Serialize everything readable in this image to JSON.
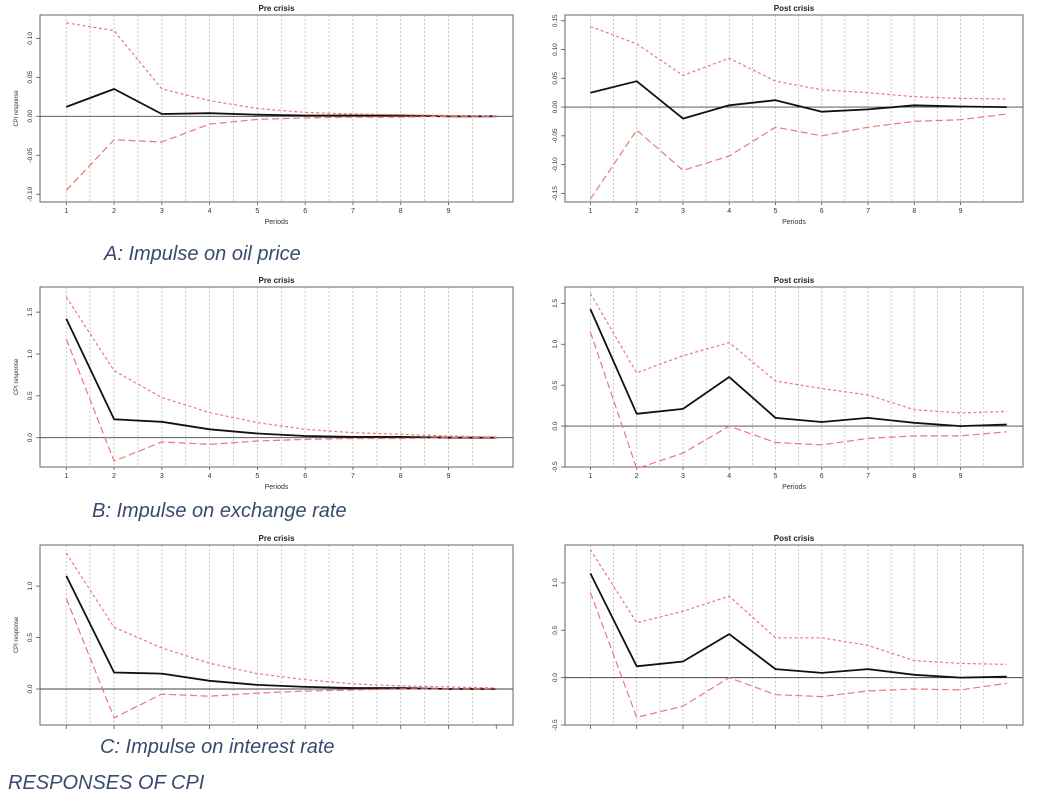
{
  "figure_title": "RESPONSES OF CPI",
  "captions": [
    "A: Impulse on oil price",
    "B: Impulse on exchange rate",
    "C: Impulse on interest rate"
  ],
  "colors": {
    "response": "#111111",
    "band": "#ee7777",
    "grid": "#bbbbbb",
    "frame": "#555555"
  },
  "chart_data": [
    {
      "type": "line",
      "title": "Pre crisis",
      "xlabel": "Periods",
      "ylabel": "CPI response",
      "ylim": [
        -0.11,
        0.13
      ],
      "yticks": [
        -0.1,
        -0.05,
        0.0,
        0.05,
        0.1
      ],
      "ytick_labels": [
        "-0.10",
        "-0.05",
        "0.00",
        "0.05",
        "0.10"
      ],
      "x_tick_labels": [
        "1",
        "2",
        "3",
        "4",
        "5",
        "6",
        "7",
        "8",
        "9"
      ],
      "x": [
        1,
        2,
        3,
        4,
        5,
        6,
        7,
        8,
        9,
        10
      ],
      "series": [
        {
          "values": [
            0.012,
            0.035,
            0.003,
            0.004,
            0.002,
            0.001,
            0.001,
            0.001,
            0.0,
            0.0
          ]
        },
        {
          "values": [
            0.12,
            0.11,
            0.035,
            0.02,
            0.01,
            0.005,
            0.003,
            0.002,
            0.001,
            0.0
          ]
        },
        {
          "values": [
            -0.095,
            -0.03,
            -0.033,
            -0.01,
            -0.004,
            -0.002,
            -0.001,
            -0.001,
            0.0,
            0.0
          ]
        }
      ]
    },
    {
      "type": "line",
      "title": "Post crisis",
      "xlabel": "Periods",
      "ylabel": "",
      "ylim": [
        -0.165,
        0.16
      ],
      "yticks": [
        -0.15,
        -0.1,
        -0.05,
        0.0,
        0.05,
        0.1,
        0.15
      ],
      "ytick_labels": [
        "-0.15",
        "-0.10",
        "-0.05",
        "0.00",
        "0.05",
        "0.10",
        "0.15"
      ],
      "x_tick_labels": [
        "1",
        "2",
        "3",
        "4",
        "5",
        "6",
        "7",
        "8",
        "9"
      ],
      "x": [
        1,
        2,
        3,
        4,
        5,
        6,
        7,
        8,
        9,
        10
      ],
      "series": [
        {
          "values": [
            0.025,
            0.045,
            -0.02,
            0.003,
            0.012,
            -0.008,
            -0.004,
            0.003,
            0.001,
            0.0
          ]
        },
        {
          "values": [
            0.14,
            0.11,
            0.055,
            0.085,
            0.045,
            0.03,
            0.025,
            0.018,
            0.015,
            0.014
          ]
        },
        {
          "values": [
            -0.16,
            -0.04,
            -0.11,
            -0.085,
            -0.035,
            -0.05,
            -0.035,
            -0.025,
            -0.022,
            -0.012
          ]
        }
      ]
    },
    {
      "type": "line",
      "title": "Pre crisis",
      "xlabel": "Periods",
      "ylabel": "CPI response",
      "ylim": [
        -0.35,
        1.8
      ],
      "yticks": [
        0.0,
        0.5,
        1.0,
        1.5
      ],
      "ytick_labels": [
        "0.0",
        "0.5",
        "1.0",
        "1.5"
      ],
      "x_tick_labels": [
        "1",
        "2",
        "3",
        "4",
        "5",
        "6",
        "7",
        "8",
        "9"
      ],
      "x": [
        1,
        2,
        3,
        4,
        5,
        6,
        7,
        8,
        9,
        10
      ],
      "series": [
        {
          "values": [
            1.42,
            0.22,
            0.19,
            0.1,
            0.05,
            0.02,
            0.01,
            0.01,
            0.0,
            0.0
          ]
        },
        {
          "values": [
            1.68,
            0.8,
            0.48,
            0.3,
            0.18,
            0.1,
            0.06,
            0.04,
            0.02,
            0.01
          ]
        },
        {
          "values": [
            1.18,
            -0.28,
            -0.05,
            -0.08,
            -0.04,
            -0.02,
            -0.01,
            -0.01,
            0.0,
            0.0
          ]
        }
      ]
    },
    {
      "type": "line",
      "title": "Post crisis",
      "xlabel": "Periods",
      "ylabel": "",
      "ylim": [
        -0.5,
        1.7
      ],
      "yticks": [
        -0.5,
        0.0,
        0.5,
        1.0,
        1.5
      ],
      "ytick_labels": [
        "-0.5",
        "0.0",
        "0.5",
        "1.0",
        "1.5"
      ],
      "x_tick_labels": [
        "1",
        "2",
        "3",
        "4",
        "5",
        "6",
        "7",
        "8",
        "9"
      ],
      "x": [
        1,
        2,
        3,
        4,
        5,
        6,
        7,
        8,
        9,
        10
      ],
      "series": [
        {
          "values": [
            1.43,
            0.15,
            0.21,
            0.6,
            0.1,
            0.05,
            0.1,
            0.04,
            0.0,
            0.02
          ]
        },
        {
          "values": [
            1.62,
            0.65,
            0.86,
            1.02,
            0.55,
            0.46,
            0.38,
            0.2,
            0.16,
            0.18
          ]
        },
        {
          "values": [
            1.15,
            -0.52,
            -0.33,
            0.0,
            -0.2,
            -0.23,
            -0.15,
            -0.12,
            -0.12,
            -0.07
          ]
        }
      ]
    },
    {
      "type": "line",
      "title": "Pre crisis",
      "xlabel": "",
      "ylabel": "CPI response",
      "ylim": [
        -0.35,
        1.4
      ],
      "yticks": [
        0.0,
        0.5,
        1.0
      ],
      "ytick_labels": [
        "0.0",
        "0.5",
        "1.0"
      ],
      "x_tick_labels": [],
      "x": [
        1,
        2,
        3,
        4,
        5,
        6,
        7,
        8,
        9,
        10
      ],
      "series": [
        {
          "values": [
            1.1,
            0.16,
            0.15,
            0.08,
            0.04,
            0.02,
            0.01,
            0.01,
            0.0,
            0.0
          ]
        },
        {
          "values": [
            1.32,
            0.6,
            0.4,
            0.25,
            0.15,
            0.09,
            0.05,
            0.03,
            0.02,
            0.01
          ]
        },
        {
          "values": [
            0.88,
            -0.28,
            -0.05,
            -0.07,
            -0.04,
            -0.02,
            -0.01,
            0.0,
            0.0,
            0.0
          ]
        }
      ]
    },
    {
      "type": "line",
      "title": "Post crisis",
      "xlabel": "",
      "ylabel": "",
      "ylim": [
        -0.5,
        1.4
      ],
      "yticks": [
        -0.5,
        0.0,
        0.5,
        1.0
      ],
      "ytick_labels": [
        "-0.5",
        "0.0",
        "0.5",
        "1.0"
      ],
      "x_tick_labels": [],
      "x": [
        1,
        2,
        3,
        4,
        5,
        6,
        7,
        8,
        9,
        10
      ],
      "series": [
        {
          "values": [
            1.1,
            0.12,
            0.17,
            0.46,
            0.09,
            0.05,
            0.09,
            0.03,
            0.0,
            0.01
          ]
        },
        {
          "values": [
            1.35,
            0.58,
            0.7,
            0.86,
            0.42,
            0.42,
            0.34,
            0.18,
            0.15,
            0.14
          ]
        },
        {
          "values": [
            0.9,
            -0.42,
            -0.3,
            0.0,
            -0.18,
            -0.2,
            -0.14,
            -0.12,
            -0.13,
            -0.06
          ]
        }
      ]
    }
  ]
}
